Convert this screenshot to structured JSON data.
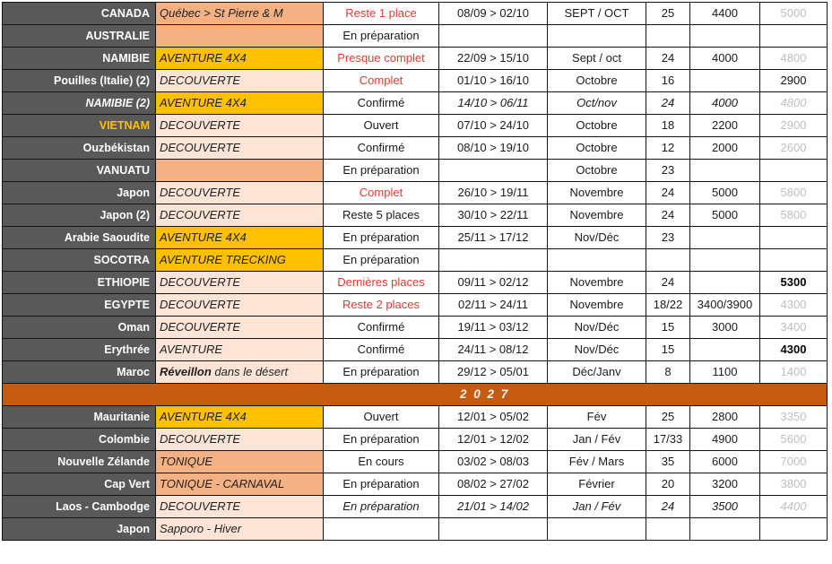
{
  "colors": {
    "destination_bg": "#595959",
    "gold": "#ffc000",
    "salmon": "#f4b183",
    "pink": "#fce4d6",
    "divider_bg": "#c55a11",
    "status_red": "#e03c31",
    "muted_price_gray": "#bfbfbf"
  },
  "divider": {
    "label": "2 0 2 7"
  },
  "rows": [
    {
      "destination": "CANADA",
      "type": "Québec > St Pierre & M",
      "type_bg": "salmon",
      "status": "Reste 1 place",
      "status_red": true,
      "dates": "08/09 > 02/10",
      "month": "SEPT / OCT",
      "count": "25",
      "price1": "4400",
      "price2": "5000",
      "price2_style": "gray"
    },
    {
      "destination": "AUSTRALIE",
      "type": "",
      "type_bg": "salmon",
      "status": "En préparation",
      "dates": "",
      "month": "",
      "count": "",
      "price1": "",
      "price2": "",
      "price2_style": ""
    },
    {
      "destination": "NAMIBIE",
      "type": "AVENTURE 4X4",
      "type_bg": "gold",
      "status": "Presque complet",
      "status_red": true,
      "dates": "22/09 > 15/10",
      "month": "Sept / oct",
      "count": "24",
      "price1": "4000",
      "price2": "4800",
      "price2_style": "gray"
    },
    {
      "destination": "Pouilles (Italie) (2)",
      "type": "DECOUVERTE",
      "type_bg": "pink",
      "status": "Complet",
      "status_red": true,
      "dates": "01/10 > 16/10",
      "month": "Octobre",
      "count": "16",
      "price1": "",
      "price2": "2900",
      "price2_style": "black"
    },
    {
      "destination": "NAMIBIE (2)",
      "destination_italic": true,
      "type": "AVENTURE 4X4",
      "type_bg": "gold",
      "status": "Confirmé",
      "dates": "14/10 > 06/11",
      "month": "Oct/nov",
      "count": "24",
      "price1": "4000",
      "price2": "4800",
      "price2_style": "gray",
      "italic": true
    },
    {
      "destination": "VIETNAM",
      "destination_gold": true,
      "type": "DECOUVERTE",
      "type_bg": "pink",
      "status": "Ouvert",
      "dates": "07/10 > 24/10",
      "month": "Octobre",
      "count": "18",
      "price1": "2200",
      "price2": "2900",
      "price2_style": "gray"
    },
    {
      "destination": "Ouzbékistan",
      "type": "DECOUVERTE",
      "type_bg": "pink",
      "status": "Confirmé",
      "dates": "08/10 > 19/10",
      "month": "Octobre",
      "count": "12",
      "price1": "2000",
      "price2": "2600",
      "price2_style": "gray"
    },
    {
      "destination": "VANUATU",
      "type": "",
      "type_bg": "salmon",
      "status": "En préparation",
      "dates": "",
      "month": "Octobre",
      "count": "23",
      "price1": "",
      "price2": "",
      "price2_style": ""
    },
    {
      "destination": "Japon",
      "type": "DECOUVERTE",
      "type_bg": "pink",
      "status": "Complet",
      "status_red": true,
      "dates": "26/10 > 19/11",
      "month": "Novembre",
      "count": "24",
      "price1": "5000",
      "price2": "5800",
      "price2_style": "gray"
    },
    {
      "destination": "Japon (2)",
      "type": "DECOUVERTE",
      "type_bg": "pink",
      "status": "Reste 5 places",
      "dates": "30/10 > 22/11",
      "month": "Novembre",
      "count": "24",
      "price1": "5000",
      "price2": "5800",
      "price2_style": "gray"
    },
    {
      "destination": "Arabie Saoudite",
      "type": "AVENTURE 4X4",
      "type_bg": "gold",
      "status": "En préparation",
      "dates": "25/11 > 17/12",
      "month": "Nov/Déc",
      "count": "23",
      "price1": "",
      "price2": "",
      "price2_style": ""
    },
    {
      "destination": "SOCOTRA",
      "type": "AVENTURE TRECKING",
      "type_bg": "gold",
      "status": "En préparation",
      "dates": "",
      "month": "",
      "count": "",
      "price1": "",
      "price2": "",
      "price2_style": ""
    },
    {
      "destination": "ETHIOPIE",
      "type": "DECOUVERTE",
      "type_bg": "pink",
      "status": "Dernières places",
      "status_red": true,
      "dates": "09/11 > 02/12",
      "month": "Novembre",
      "count": "24",
      "price1": "",
      "price2": "5300",
      "price2_style": "boldblack"
    },
    {
      "destination": "EGYPTE",
      "type": "DECOUVERTE",
      "type_bg": "pink",
      "status": "Reste 2 places",
      "status_red": true,
      "dates": "02/11 > 24/11",
      "month": "Novembre",
      "count": "18/22",
      "price1": "3400/3900",
      "price2": "4300",
      "price2_style": "gray"
    },
    {
      "destination": "Oman",
      "type": "DECOUVERTE",
      "type_bg": "pink",
      "status": "Confirmé",
      "dates": "19/11 > 03/12",
      "month": "Nov/Déc",
      "count": "15",
      "price1": "3000",
      "price2": "3400",
      "price2_style": "gray"
    },
    {
      "destination": "Erythrée",
      "type": "AVENTURE",
      "type_bg": "pink",
      "status": "Confirmé",
      "dates": "24/11 > 08/12",
      "month": "Nov/Déc",
      "count": "15",
      "price1": "",
      "price2": "4300",
      "price2_style": "boldblack"
    },
    {
      "destination": "Maroc",
      "type_bold_prefix": "Réveillon ",
      "type": " dans le désert",
      "type_bg": "pink",
      "status": "En préparation",
      "dates": "29/12 > 05/01",
      "month": "Déc/Janv",
      "count": "8",
      "price1": "1100",
      "price2": "1400",
      "price2_style": "gray"
    },
    {
      "divider": true
    },
    {
      "destination": "Mauritanie",
      "type": "AVENTURE 4X4",
      "type_bg": "gold",
      "status": "Ouvert",
      "dates": "12/01 > 05/02",
      "month": "Fév",
      "count": "25",
      "price1": "2800",
      "price2": "3350",
      "price2_style": "gray"
    },
    {
      "destination": "Colombie",
      "type": "DECOUVERTE",
      "type_bg": "pink",
      "status": "En préparation",
      "dates": "12/01 > 12/02",
      "month": "Jan / Fév",
      "count": "17/33",
      "price1": "4900",
      "price2": "5600",
      "price2_style": "gray"
    },
    {
      "destination": "Nouvelle Zélande",
      "type": "TONIQUE",
      "type_bg": "salmon",
      "status": "En cours",
      "dates": "03/02 > 08/03",
      "month": "Fév / Mars",
      "count": "35",
      "price1": "6000",
      "price2": "7000",
      "price2_style": "gray"
    },
    {
      "destination": "Cap Vert",
      "type": "TONIQUE - CARNAVAL",
      "type_bg": "salmon",
      "status": "En préparation",
      "dates": "08/02 > 27/02",
      "month": "Février",
      "count": "20",
      "price1": "3200",
      "price2": "3800",
      "price2_style": "gray"
    },
    {
      "destination": "Laos - Cambodge",
      "type": "DECOUVERTE",
      "type_bg": "pink",
      "status": "En préparation",
      "status_italic": true,
      "dates": "21/01 > 14/02",
      "month": "Jan / Fév",
      "count": "24",
      "price1": "3500",
      "price2": "4400",
      "price2_style": "gray",
      "italic": true
    },
    {
      "destination": "Japon",
      "type": "Sapporo - Hiver",
      "type_bg": "pink",
      "status": "",
      "dates": "",
      "month": "",
      "count": "",
      "price1": "",
      "price2": "",
      "price2_style": ""
    }
  ]
}
